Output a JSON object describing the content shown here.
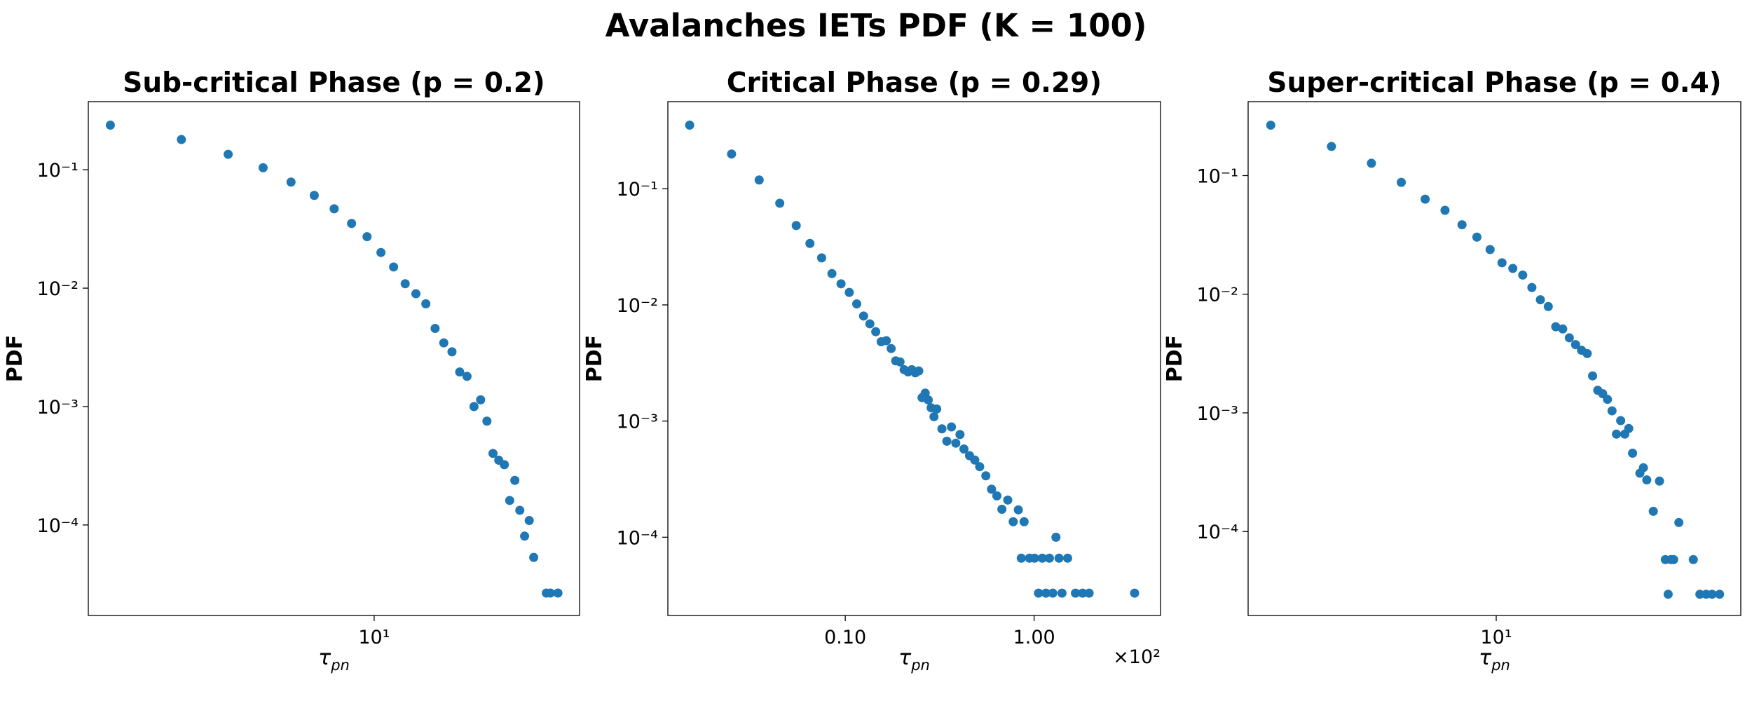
{
  "title": "Avalanches IETs PDF (K = 100)",
  "chart_data": [
    {
      "type": "scatter",
      "title": "Sub-critical Phase (p = 0.2)",
      "xlabel": [
        "τ",
        "pn"
      ],
      "ylabel": "PDF",
      "log_x": true,
      "log_y": true,
      "color": "#1f77b4",
      "xlim": [
        1.28,
        43.8
      ],
      "ylim": [
        1.72e-05,
        0.376
      ],
      "xticks": [
        {
          "value": 10,
          "label": "10¹"
        }
      ],
      "yticks": [
        {
          "value": 0.1,
          "label": "10⁻¹"
        },
        {
          "value": 0.01,
          "label": "10⁻²"
        },
        {
          "value": 0.001,
          "label": "10⁻³"
        },
        {
          "value": 0.0001,
          "label": "10⁻⁴"
        }
      ],
      "x": [
        1.5,
        2.5,
        3.5,
        4.5,
        5.5,
        6.5,
        7.5,
        8.5,
        9.5,
        10.5,
        11.5,
        12.5,
        13.5,
        14.5,
        15.5,
        16.5,
        17.5,
        18.5,
        19.5,
        20.5,
        21.5,
        22.5,
        23.5,
        24.5,
        25.5,
        26.5,
        27.5,
        28.5,
        29.5,
        30.5,
        31.5,
        34.5,
        35.5,
        37.5
      ],
      "values": [
        0.238,
        0.18,
        0.135,
        0.104,
        0.0787,
        0.0607,
        0.0468,
        0.0352,
        0.0272,
        0.02,
        0.0151,
        0.0109,
        0.00897,
        0.00738,
        0.00457,
        0.00345,
        0.0029,
        0.00196,
        0.0018,
        0.001,
        0.00114,
        0.000753,
        0.000402,
        0.000352,
        0.000323,
        0.000161,
        0.000238,
        0.000133,
        8.05e-05,
        0.000109,
        5.32e-05,
        2.66e-05,
        2.66e-05,
        2.66e-05
      ]
    },
    {
      "type": "scatter",
      "title": "Critical Phase (p = 0.29)",
      "xlabel": [
        "τ",
        "pn"
      ],
      "ylabel": "PDF",
      "log_x": true,
      "log_y": true,
      "color": "#1f77b4",
      "xlim": [
        1.15,
        467
      ],
      "ylim": [
        2.12e-05,
        0.562
      ],
      "xticks": [
        {
          "value": 10,
          "label": "0.10"
        },
        {
          "value": 100,
          "label": "1.00"
        }
      ],
      "x_offset_label": "×10²",
      "yticks": [
        {
          "value": 0.1,
          "label": "10⁻¹"
        },
        {
          "value": 0.01,
          "label": "10⁻²"
        },
        {
          "value": 0.001,
          "label": "10⁻³"
        },
        {
          "value": 0.0001,
          "label": "10⁻⁴"
        }
      ],
      "x": [
        1.5,
        2.5,
        3.5,
        4.5,
        5.5,
        6.5,
        7.5,
        8.5,
        9.5,
        10.5,
        11.5,
        12.5,
        13.5,
        14.5,
        15.5,
        16.5,
        17.5,
        18.5,
        19.5,
        20.5,
        21.5,
        22.5,
        23.5,
        24.5,
        25.5,
        26.5,
        27.5,
        28.5,
        29.5,
        30.5,
        32.5,
        34.5,
        36.5,
        38.5,
        40.5,
        42.5,
        45.5,
        48.5,
        51.5,
        55.5,
        59.5,
        63.5,
        67.5,
        72.5,
        77.5,
        82.5,
        85.5,
        88.5,
        94.5,
        100.5,
        105.5,
        110.5,
        115.5,
        120.5,
        125.5,
        130.5,
        135.5,
        140.5,
        150.5,
        165.5,
        180.5,
        195.5,
        340.5
      ],
      "values": [
        0.353,
        0.199,
        0.119,
        0.075,
        0.0482,
        0.0338,
        0.0254,
        0.0186,
        0.0152,
        0.0128,
        0.0102,
        0.00802,
        0.00687,
        0.00588,
        0.00482,
        0.00492,
        0.00421,
        0.0033,
        0.00323,
        0.00277,
        0.00265,
        0.00277,
        0.0026,
        0.0027,
        0.00159,
        0.00174,
        0.00152,
        0.0013,
        0.00109,
        0.00127,
        0.000857,
        0.000671,
        0.00089,
        0.000645,
        0.000766,
        0.000575,
        0.000504,
        0.000462,
        0.000405,
        0.000338,
        0.000259,
        0.000227,
        0.000174,
        0.000209,
        0.000136,
        0.000172,
        6.6e-05,
        0.000136,
        6.6e-05,
        6.6e-05,
        3.3e-05,
        6.6e-05,
        3.3e-05,
        6.6e-05,
        3.3e-05,
        0.0001,
        6.6e-05,
        3.3e-05,
        6.6e-05,
        3.3e-05,
        3.3e-05,
        3.3e-05,
        3.3e-05
      ]
    },
    {
      "type": "scatter",
      "title": "Super-critical Phase (p = 0.4)",
      "xlabel": [
        "τ",
        "pn"
      ],
      "ylabel": "PDF",
      "log_x": true,
      "log_y": true,
      "color": "#1f77b4",
      "xlim": [
        1.24,
        78.3
      ],
      "ylim": [
        1.96e-05,
        0.42
      ],
      "xticks": [
        {
          "value": 10,
          "label": "10¹"
        }
      ],
      "yticks": [
        {
          "value": 0.1,
          "label": "10⁻¹"
        },
        {
          "value": 0.01,
          "label": "10⁻²"
        },
        {
          "value": 0.001,
          "label": "10⁻³"
        },
        {
          "value": 0.0001,
          "label": "10⁻⁴"
        }
      ],
      "x": [
        1.5,
        2.5,
        3.5,
        4.5,
        5.5,
        6.5,
        7.5,
        8.5,
        9.5,
        10.5,
        11.5,
        12.5,
        13.5,
        14.5,
        15.5,
        16.5,
        17.5,
        18.5,
        19.5,
        20.5,
        21.5,
        22.5,
        23.5,
        24.5,
        25.5,
        26.5,
        27.5,
        28.5,
        29.5,
        30.5,
        31.5,
        33.5,
        34.5,
        35.5,
        37.5,
        39.5,
        41.5,
        42.5,
        43.5,
        44.5,
        46.5,
        52.5,
        55.5,
        58.5,
        61.5,
        65.5
      ],
      "values": [
        0.266,
        0.176,
        0.127,
        0.0877,
        0.0633,
        0.051,
        0.0385,
        0.0303,
        0.0238,
        0.0184,
        0.0165,
        0.0145,
        0.0114,
        0.00898,
        0.00788,
        0.00532,
        0.0051,
        0.00429,
        0.00376,
        0.00337,
        0.00316,
        0.00205,
        0.00155,
        0.00145,
        0.0013,
        0.00104,
        0.000662,
        0.00086,
        0.000662,
        0.000738,
        0.000457,
        0.00031,
        0.000345,
        0.000272,
        0.000148,
        0.000266,
        5.8e-05,
        2.96e-05,
        5.8e-05,
        5.8e-05,
        0.000119,
        5.8e-05,
        2.96e-05,
        2.96e-05,
        2.96e-05,
        2.96e-05
      ]
    }
  ]
}
